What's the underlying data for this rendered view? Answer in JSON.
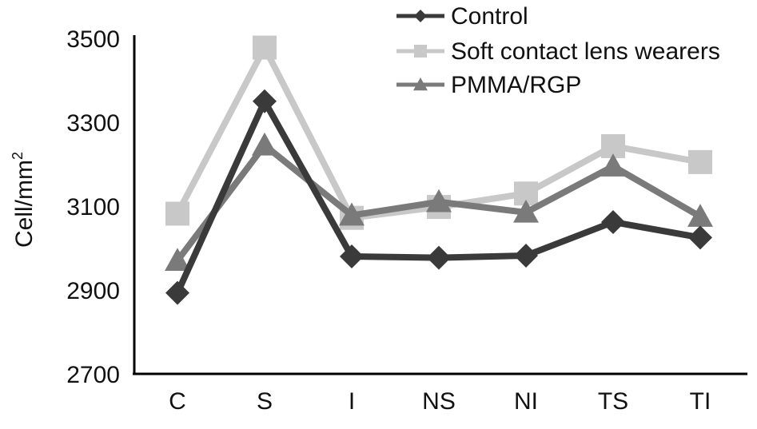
{
  "chart_data": {
    "type": "line",
    "title": "",
    "xlabel": "",
    "ylabel": "Cell/mm",
    "ylabel_superscript": "2",
    "categories": [
      "C",
      "S",
      "I",
      "NS",
      "NI",
      "TS",
      "TI"
    ],
    "ylim": [
      2700,
      3500
    ],
    "yticks": [
      2700,
      2900,
      3100,
      3300,
      3500
    ],
    "grid": false,
    "legend_position": "top-right",
    "series": [
      {
        "name": "Control",
        "marker": "diamond",
        "color": "#3a3a3a",
        "values": [
          2893,
          3350,
          2980,
          2977,
          2982,
          3062,
          3025
        ]
      },
      {
        "name": "Soft contact lens wearers",
        "marker": "square",
        "color": "#c8c8c8",
        "values": [
          3082,
          3478,
          3072,
          3098,
          3130,
          3243,
          3205
        ]
      },
      {
        "name": "PMMA/RGP",
        "marker": "triangle",
        "color": "#7a7a7a",
        "values": [
          2970,
          3245,
          3078,
          3110,
          3085,
          3195,
          3075
        ]
      }
    ]
  }
}
